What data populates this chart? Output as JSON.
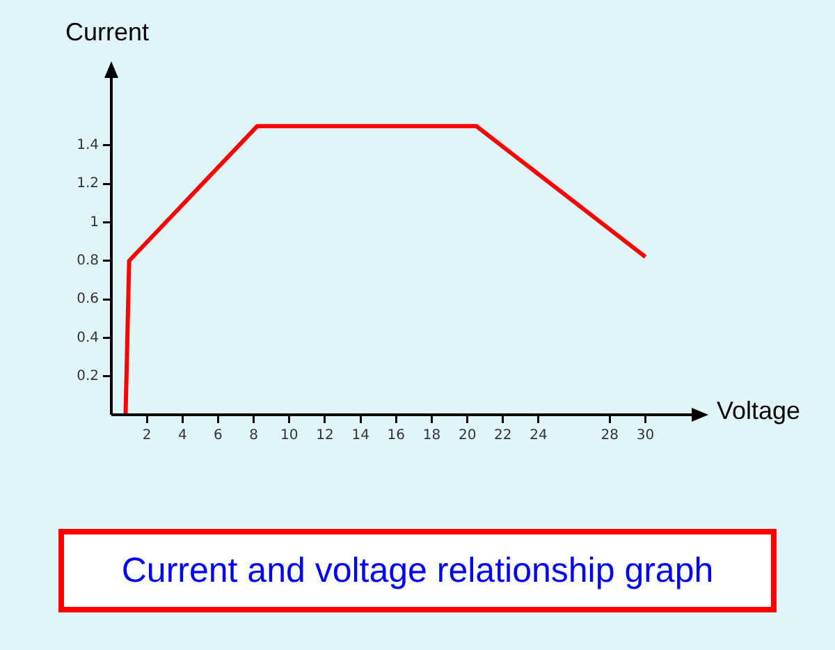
{
  "chart_data": {
    "type": "line",
    "title": "Current and voltage relationship graph",
    "xlabel": "Voltage",
    "ylabel": "Current",
    "x": [
      0.8,
      1,
      8.2,
      20.5,
      30
    ],
    "values": [
      0,
      0.8,
      1.5,
      1.5,
      0.82
    ],
    "color": "#ff0000",
    "xlim": [
      0,
      32.6
    ],
    "xticks": [
      2,
      4,
      6,
      8,
      10,
      12,
      14,
      16,
      18,
      20,
      22,
      24,
      28,
      30
    ],
    "ylim": [
      0,
      1.75
    ],
    "yticks": [
      0.2,
      0.4,
      0.6,
      0.8,
      1.0,
      1.2,
      1.4
    ],
    "grid": false,
    "legend": false,
    "marker": "none",
    "line_style": "solid"
  }
}
